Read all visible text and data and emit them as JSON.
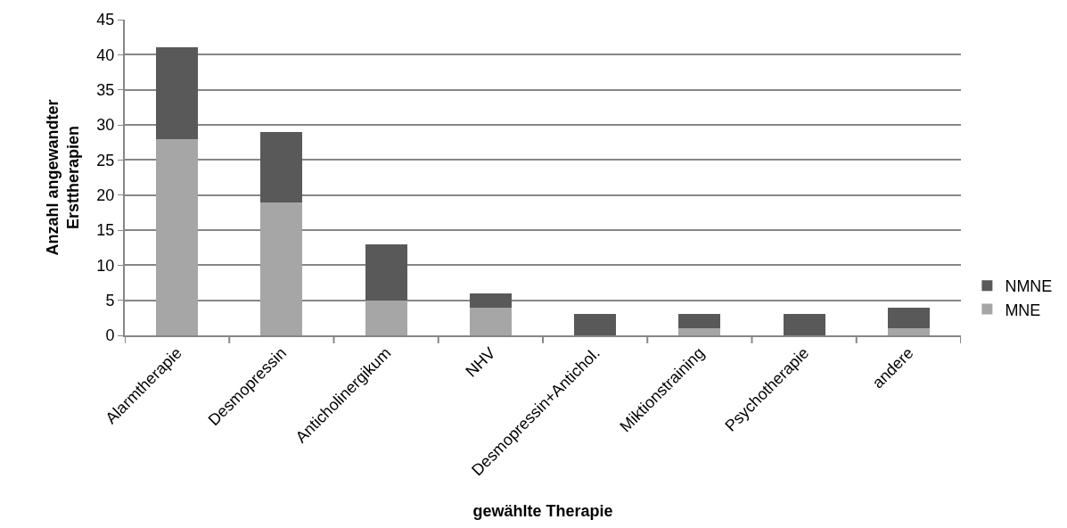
{
  "chart_data": {
    "type": "bar",
    "stacked": true,
    "xlabel": "gewählte Therapie",
    "ylabel": "Anzahl angewandter Ersttherapien",
    "categories": [
      "Alarmtherapie",
      "Desmopressin",
      "Anticholinergikum",
      "NHV",
      "Desmopressin+Antichol.",
      "Miktionstraining",
      "Psychotherapie",
      "andere"
    ],
    "series": [
      {
        "name": "MNE",
        "color": "#a6a6a6",
        "values": [
          28,
          19,
          5,
          4,
          0,
          1,
          0,
          1
        ]
      },
      {
        "name": "NMNE",
        "color": "#595959",
        "values": [
          13,
          10,
          8,
          2,
          3,
          2,
          3,
          3
        ]
      }
    ],
    "ylim": [
      0,
      45
    ],
    "yticks": [
      0,
      5,
      10,
      15,
      20,
      25,
      30,
      35,
      40,
      45
    ],
    "grid": "y",
    "legend": "right"
  }
}
